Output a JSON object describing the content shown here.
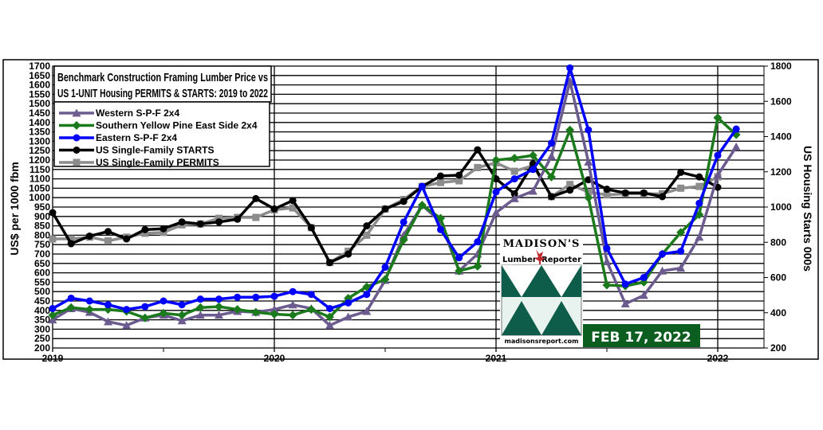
{
  "chart_data": {
    "type": "line",
    "title_line1": "Benchmark Construction  Framing Lumber Price vs",
    "title_line2": "US 1-UNIT Housing PERMITS & STARTS: 2019 to 2022",
    "ylabel_left": "US$ per 1000 fbm",
    "ylabel_right": "US Housing  Starts 000s",
    "ylim_left": [
      200,
      1700
    ],
    "ylim_right": [
      200,
      1800
    ],
    "x_start": "2019-01",
    "x_end": "2022-03",
    "x_tick_labels": [
      "2019",
      "2020",
      "2021",
      "2022"
    ],
    "grid": true,
    "legend_placement": "top-left",
    "series": [
      {
        "name": "Western S-P-F 2x4",
        "axis": "left",
        "color": "#6b5b8e",
        "marker": "triangle",
        "values": [
          350,
          410,
          390,
          340,
          320,
          360,
          375,
          345,
          375,
          375,
          395,
          390,
          405,
          430,
          410,
          320,
          365,
          395,
          560,
          800,
          960,
          870,
          610,
          700,
          920,
          995,
          1035,
          1220,
          1620,
          1190,
          660,
          435,
          480,
          610,
          625,
          790,
          1120,
          1270
        ]
      },
      {
        "name": "Southern Yellow Pine East Side 2x4",
        "axis": "left",
        "color": "#1b7a1b",
        "marker": "diamond",
        "values": [
          375,
          415,
          405,
          405,
          395,
          360,
          385,
          375,
          415,
          420,
          405,
          390,
          380,
          375,
          405,
          365,
          465,
          525,
          565,
          775,
          960,
          890,
          610,
          635,
          1200,
          1210,
          1225,
          1110,
          1360,
          1000,
          535,
          530,
          550,
          700,
          815,
          910,
          1425,
          1335
        ]
      },
      {
        "name": "Eastern S-P-F 2x4",
        "axis": "left",
        "color": "#0000ff",
        "marker": "circle",
        "values": [
          410,
          465,
          450,
          430,
          405,
          420,
          450,
          430,
          460,
          460,
          470,
          470,
          475,
          500,
          485,
          410,
          440,
          485,
          630,
          870,
          1060,
          830,
          680,
          765,
          1030,
          1100,
          1150,
          1290,
          1690,
          1360,
          730,
          540,
          575,
          700,
          715,
          970,
          1225,
          1365
        ]
      },
      {
        "name": "US Single-Family STARTS",
        "axis": "right",
        "color": "#000000",
        "marker": "circle",
        "values": [
          968,
          792,
          835,
          861,
          819,
          872,
          877,
          915,
          904,
          915,
          931,
          1048,
          989,
          1037,
          883,
          685,
          733,
          893,
          989,
          1032,
          1117,
          1176,
          1181,
          1325,
          1160,
          1075,
          1245,
          1059,
          1096,
          1155,
          1101,
          1080,
          1080,
          1059,
          1197,
          1171,
          1112
        ]
      },
      {
        "name": "US Single-Family PERMITS",
        "axis": "right",
        "color": "#8c8c8c",
        "marker": "square",
        "values": [
          819,
          819,
          829,
          808,
          829,
          851,
          856,
          899,
          904,
          936,
          941,
          941,
          984,
          995,
          883,
          685,
          749,
          840,
          989,
          1043,
          1117,
          1139,
          1149,
          1224,
          1251,
          1203,
          1235,
          1059,
          1128,
          1085,
          1069,
          1075,
          1075,
          1075,
          1107,
          1117,
          1171
        ]
      }
    ]
  },
  "logo": {
    "line1": "MADISON'S",
    "line2a": "Lumber",
    "line2b": "Reporter",
    "url": "madisonsreport.com"
  },
  "date_badge": {
    "text": "FEB 17, 2022",
    "color": "#0b5e1f"
  }
}
